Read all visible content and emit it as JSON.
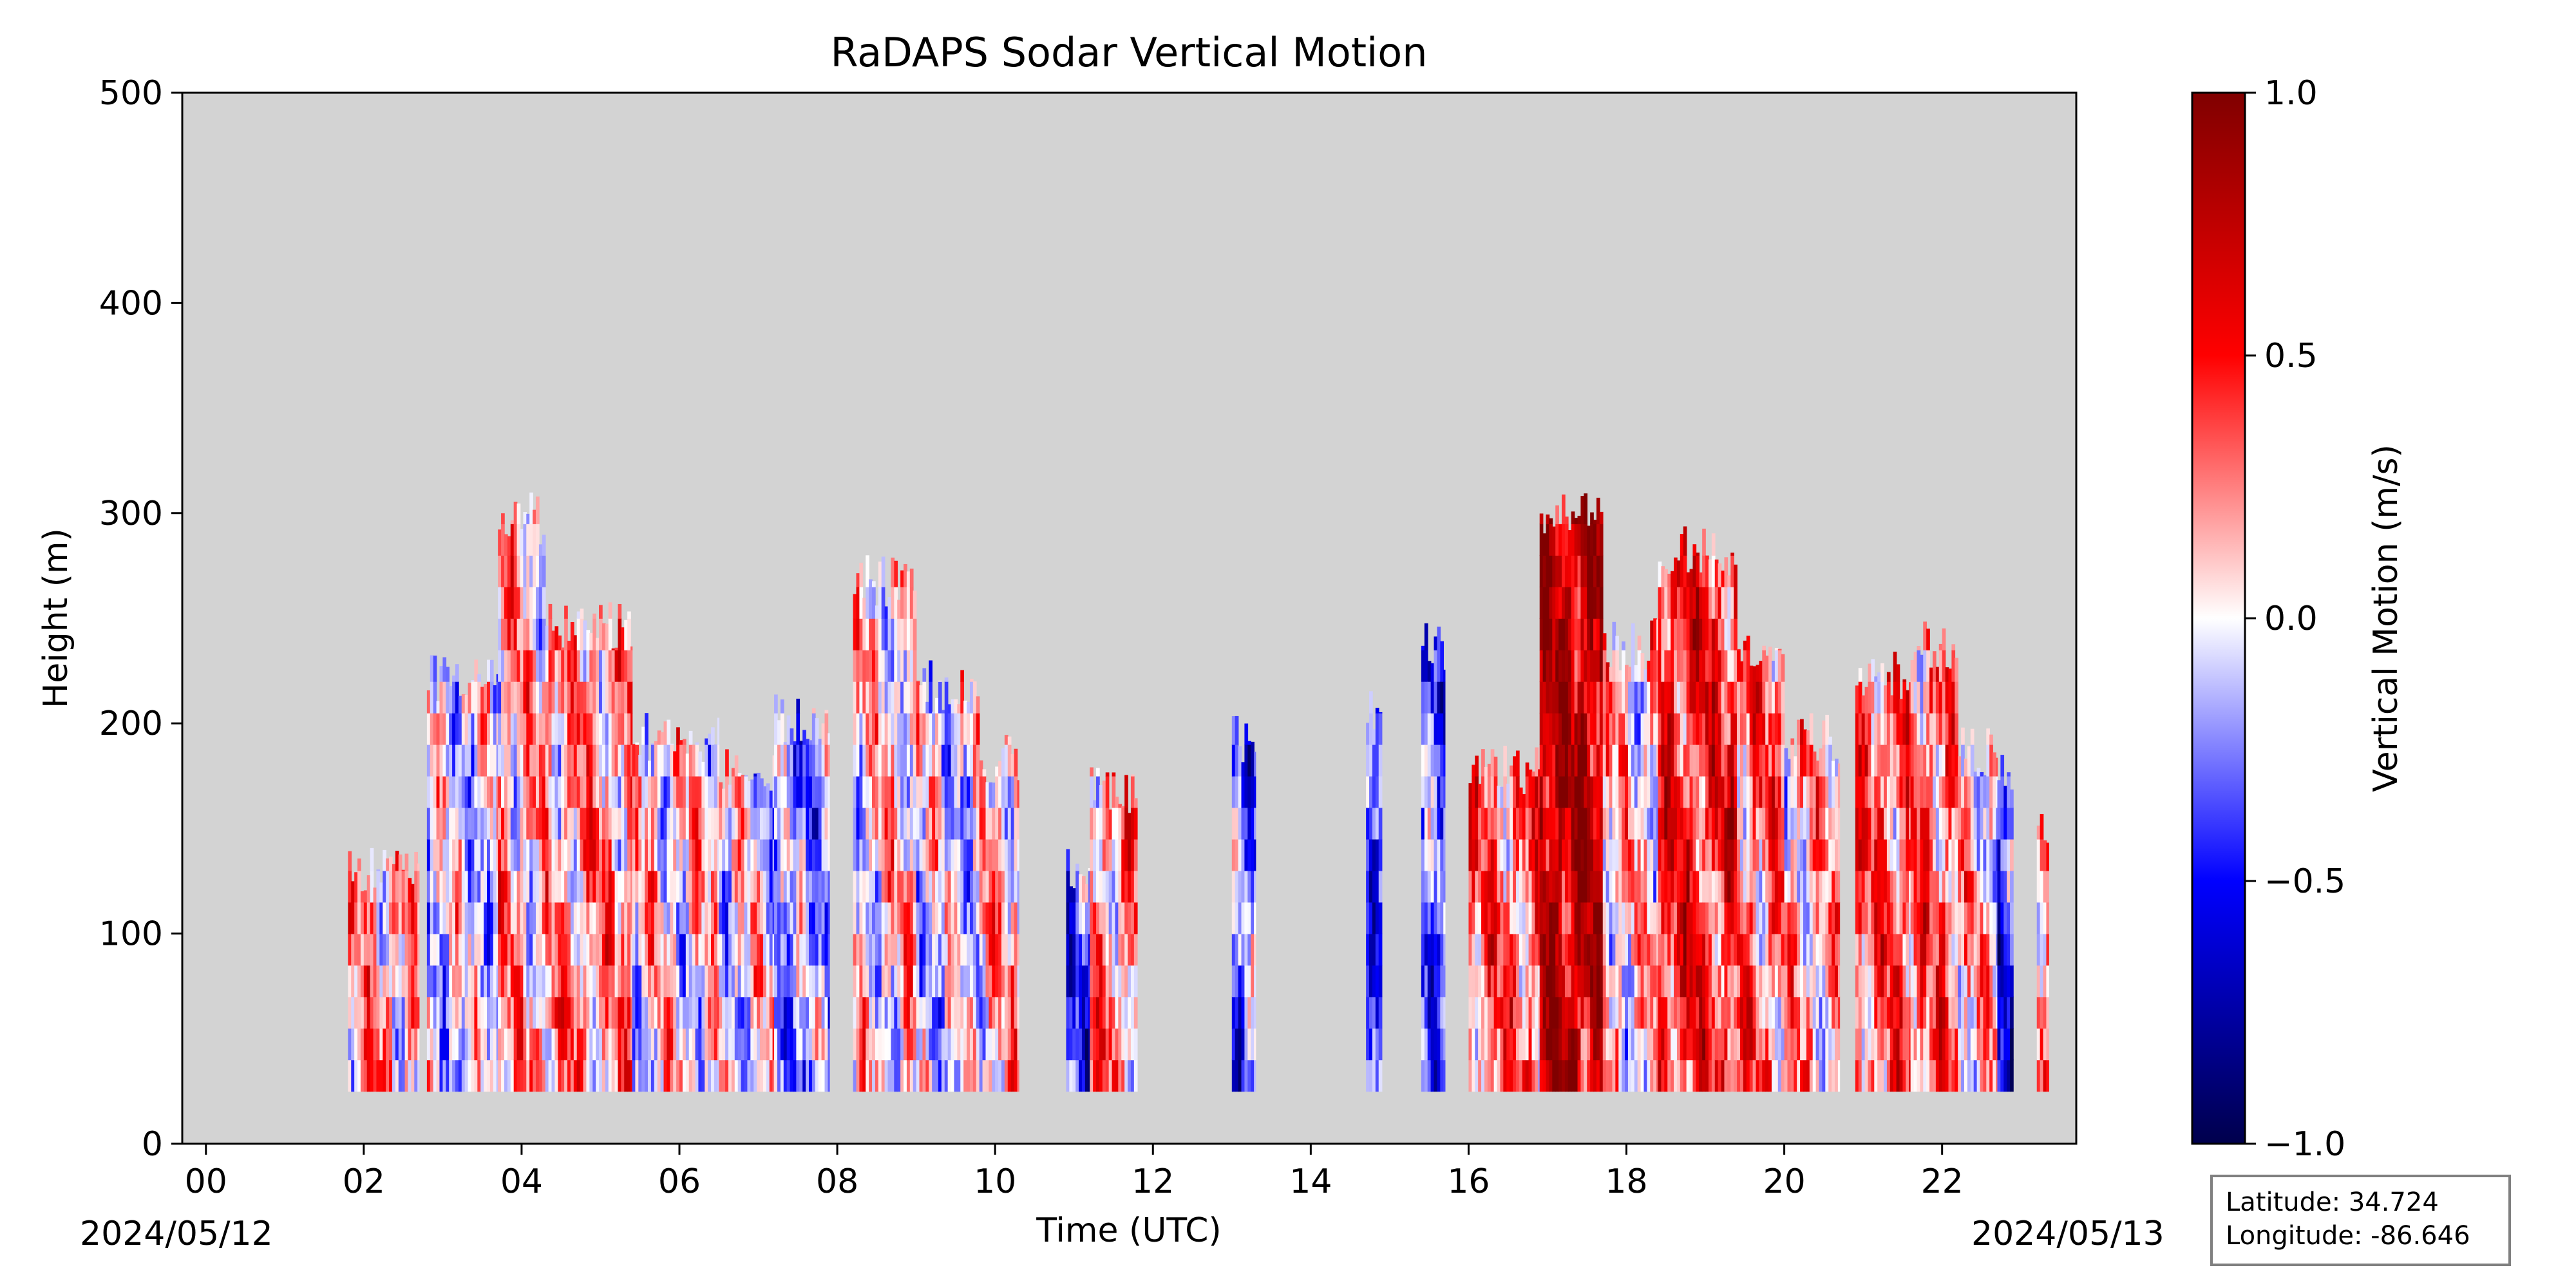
{
  "chart_data": {
    "type": "heatmap",
    "title": "RaDAPS Sodar Vertical Motion",
    "xlabel": "Time (UTC)",
    "ylabel": "Height (m)",
    "xlim": [
      -0.3,
      23.7
    ],
    "ylim": [
      0,
      500
    ],
    "x_ticks": [
      0,
      2,
      4,
      6,
      8,
      10,
      12,
      14,
      16,
      18,
      20,
      22
    ],
    "x_tick_labels": [
      "00",
      "02",
      "04",
      "06",
      "08",
      "10",
      "12",
      "14",
      "16",
      "18",
      "20",
      "22"
    ],
    "y_ticks": [
      0,
      100,
      200,
      300,
      400,
      500
    ],
    "y_tick_labels": [
      "0",
      "100",
      "200",
      "300",
      "400",
      "500"
    ],
    "date_start_label": "2024/05/12",
    "date_end_label": "2024/05/13",
    "missing_color": "#d3d3d3",
    "colorbar": {
      "label": "Vertical Motion (m/s)",
      "colormap": "seismic",
      "vmin": -1.0,
      "vmax": 1.0,
      "ticks": [
        -1.0,
        -0.5,
        0.0,
        0.5,
        1.0
      ],
      "tick_labels": [
        "−1.0",
        "−0.5",
        "0.0",
        "0.5",
        "1.0"
      ]
    },
    "grid": false,
    "legend": "none",
    "segments": [
      {
        "t_start": 1.8,
        "t_end": 2.7,
        "top": 145,
        "bias": 0.15
      },
      {
        "t_start": 2.8,
        "t_end": 3.7,
        "top": 235,
        "bias": -0.05
      },
      {
        "t_start": 3.7,
        "t_end": 4.3,
        "top": 310,
        "bias": 0.15
      },
      {
        "t_start": 4.3,
        "t_end": 5.4,
        "top": 260,
        "bias": 0.2
      },
      {
        "t_start": 5.4,
        "t_end": 6.5,
        "top": 205,
        "bias": 0.05
      },
      {
        "t_start": 6.5,
        "t_end": 7.2,
        "top": 190,
        "bias": 0.0
      },
      {
        "t_start": 7.2,
        "t_end": 7.9,
        "top": 215,
        "bias": -0.2
      },
      {
        "t_start": 8.2,
        "t_end": 9.0,
        "top": 280,
        "bias": 0.05
      },
      {
        "t_start": 9.0,
        "t_end": 9.8,
        "top": 230,
        "bias": -0.05
      },
      {
        "t_start": 9.8,
        "t_end": 10.3,
        "top": 195,
        "bias": 0.15
      },
      {
        "t_start": 10.9,
        "t_end": 11.2,
        "top": 145,
        "bias": -0.35
      },
      {
        "t_start": 11.2,
        "t_end": 11.8,
        "top": 180,
        "bias": 0.25
      },
      {
        "t_start": 13.0,
        "t_end": 13.3,
        "top": 205,
        "bias": -0.3
      },
      {
        "t_start": 14.7,
        "t_end": 14.9,
        "top": 220,
        "bias": -0.35
      },
      {
        "t_start": 15.4,
        "t_end": 15.7,
        "top": 250,
        "bias": -0.35
      },
      {
        "t_start": 16.0,
        "t_end": 16.9,
        "top": 190,
        "bias": 0.3
      },
      {
        "t_start": 16.9,
        "t_end": 17.7,
        "top": 310,
        "bias": 0.75
      },
      {
        "t_start": 17.7,
        "t_end": 18.4,
        "top": 250,
        "bias": 0.1
      },
      {
        "t_start": 18.4,
        "t_end": 19.4,
        "top": 295,
        "bias": 0.45
      },
      {
        "t_start": 19.4,
        "t_end": 20.0,
        "top": 250,
        "bias": 0.3
      },
      {
        "t_start": 20.0,
        "t_end": 20.7,
        "top": 205,
        "bias": 0.15
      },
      {
        "t_start": 20.9,
        "t_end": 21.6,
        "top": 235,
        "bias": 0.35
      },
      {
        "t_start": 21.6,
        "t_end": 22.2,
        "top": 250,
        "bias": 0.3
      },
      {
        "t_start": 22.2,
        "t_end": 22.7,
        "top": 200,
        "bias": 0.1
      },
      {
        "t_start": 22.7,
        "t_end": 22.9,
        "top": 190,
        "bias": -0.45
      },
      {
        "t_start": 23.2,
        "t_end": 23.35,
        "top": 160,
        "bias": 0.3
      }
    ],
    "data_floor_height": 25
  },
  "info_box": {
    "latitude_label": "Latitude: 34.724",
    "longitude_label": "Longitude: -86.646"
  }
}
